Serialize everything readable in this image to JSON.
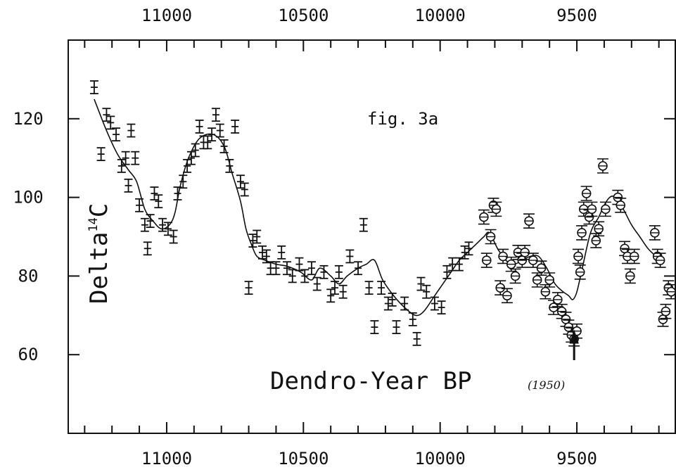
{
  "chart_data": {
    "type": "scatter",
    "title": "",
    "annotation": "fig. 3a",
    "xlabel": "Dendro-Year BP",
    "xlabel_note": "(1950)",
    "ylabel_main": "Delta",
    "ylabel_sup": "14",
    "ylabel_tail": "C",
    "x_reversed": true,
    "xlim": [
      11360,
      9140
    ],
    "ylim": [
      40,
      140
    ],
    "x_ticks": [
      11000,
      10500,
      10000,
      9500
    ],
    "x_tick_labels": [
      "11000",
      "10500",
      "10000",
      "9500"
    ],
    "y_ticks": [
      60,
      80,
      100,
      120
    ],
    "y_tick_labels": [
      "60",
      "80",
      "100",
      "120"
    ],
    "grid": false,
    "arrow_at_x": 9510,
    "series": [
      {
        "marker": "bar",
        "x": [
          11265,
          11240,
          11220,
          11205,
          11185,
          11165,
          11150,
          11140,
          11130,
          11115,
          11100,
          11080,
          11070,
          11060,
          11045,
          11030,
          11015,
          10995,
          10975,
          10960,
          10940,
          10925,
          10910,
          10895,
          10880,
          10865,
          10850,
          10835,
          10820,
          10805,
          10790,
          10770,
          10750,
          10730,
          10715,
          10700,
          10685,
          10670,
          10650,
          10635,
          10620,
          10600,
          10580,
          10560,
          10540,
          10515,
          10495,
          10470,
          10450,
          10425,
          10400,
          10385,
          10370,
          10355,
          10330,
          10300,
          10280,
          10260,
          10240,
          10215,
          10190,
          10175,
          10160,
          10130,
          10100,
          10085,
          10070,
          10050,
          10020,
          9995,
          9975,
          9955,
          9930,
          9910,
          9895
        ],
        "y": [
          128,
          111,
          121,
          119,
          116,
          108,
          110,
          103,
          117,
          110,
          98,
          93,
          87,
          94,
          101,
          99,
          93,
          92,
          90,
          101,
          104,
          108,
          110,
          112,
          118,
          114,
          114,
          116,
          121,
          117,
          113,
          108,
          118,
          104,
          102,
          77,
          89,
          90,
          86,
          85,
          82,
          82,
          86,
          82,
          80,
          83,
          80,
          82,
          78,
          81,
          75,
          77,
          81,
          76,
          85,
          82,
          93,
          77,
          67,
          77,
          73,
          74,
          67,
          73,
          69,
          64,
          78,
          76,
          73,
          72,
          81,
          83,
          83,
          86,
          87
        ]
      },
      {
        "marker": "circle",
        "x": [
          9840,
          9830,
          9815,
          9805,
          9795,
          9780,
          9770,
          9755,
          9740,
          9725,
          9715,
          9700,
          9690,
          9675,
          9660,
          9645,
          9630,
          9615,
          9600,
          9585,
          9570,
          9555,
          9540,
          9530,
          9520,
          9510,
          9500,
          9495,
          9488,
          9482,
          9475,
          9465,
          9455,
          9445,
          9430,
          9420,
          9405,
          9395,
          9350,
          9340,
          9325,
          9315,
          9305,
          9290,
          9215,
          9205,
          9195,
          9185,
          9175,
          9165,
          9155
        ],
        "y": [
          95,
          84,
          90,
          98,
          97,
          77,
          85,
          75,
          83,
          80,
          86,
          84,
          86,
          94,
          84,
          79,
          82,
          76,
          79,
          72,
          74,
          71,
          69,
          67,
          65,
          64,
          66,
          85,
          81,
          91,
          97,
          101,
          95,
          97,
          89,
          92,
          108,
          97,
          100,
          98,
          87,
          85,
          80,
          85,
          91,
          85,
          84,
          69,
          71,
          77,
          76
        ]
      }
    ],
    "curve": {
      "x": [
        11265,
        11220,
        11180,
        11140,
        11110,
        11080,
        11050,
        11020,
        10990,
        10970,
        10950,
        10920,
        10880,
        10830,
        10790,
        10760,
        10730,
        10710,
        10690,
        10670,
        10640,
        10600,
        10560,
        10510,
        10470,
        10440,
        10400,
        10370,
        10340,
        10300,
        10270,
        10240,
        10210,
        10170,
        10130,
        10090,
        10060,
        10020,
        9990,
        9960,
        9930,
        9900,
        9870,
        9840,
        9820,
        9790,
        9760,
        9730,
        9700,
        9670,
        9640,
        9610,
        9580,
        9550,
        9530,
        9515,
        9500,
        9480,
        9450,
        9420,
        9400,
        9380,
        9360,
        9330,
        9300,
        9270,
        9240,
        9210,
        9190
      ],
      "y": [
        125,
        117,
        111,
        107,
        104,
        97,
        94,
        92,
        93,
        96,
        103,
        110,
        115,
        116,
        113,
        106,
        99,
        92,
        88,
        85,
        84,
        83,
        82.5,
        81,
        79,
        82,
        80,
        78,
        80,
        82,
        83,
        84,
        79,
        75,
        72,
        70,
        71,
        75,
        78,
        81,
        84,
        86,
        88,
        90,
        91,
        87,
        84,
        83,
        84,
        85,
        85,
        82,
        78,
        76,
        75,
        74,
        76,
        82,
        91,
        95,
        98,
        100,
        100,
        97,
        93,
        90,
        87,
        85,
        84
      ]
    }
  }
}
